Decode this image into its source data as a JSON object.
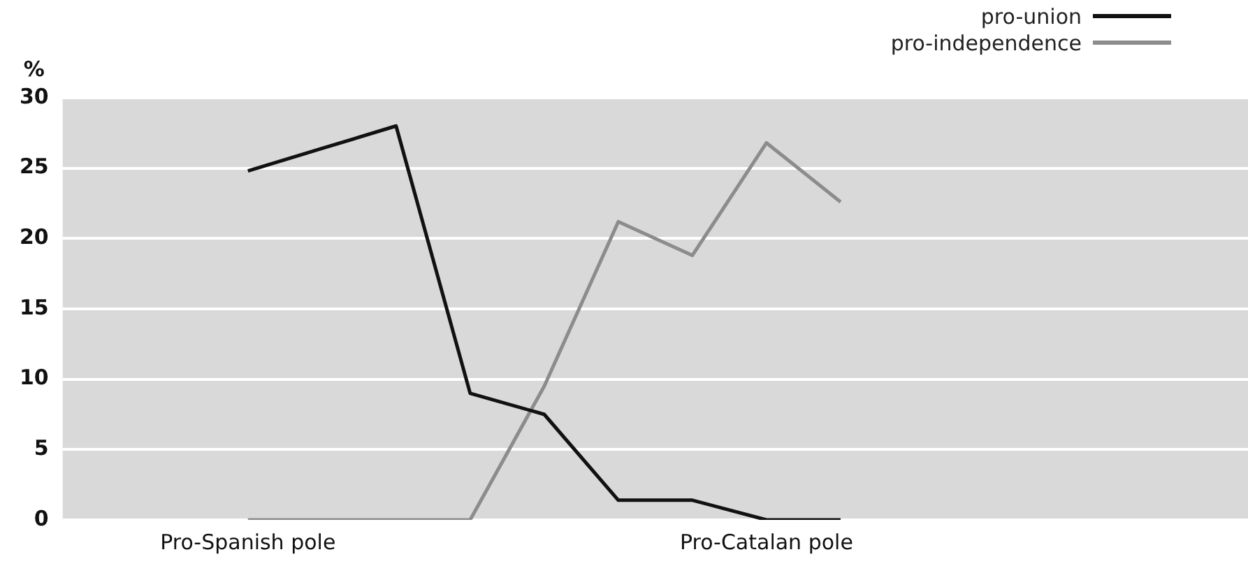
{
  "chart_data": {
    "type": "line",
    "ylabel": "%",
    "categories": [
      null,
      null,
      "Pro-Spanish pole",
      null,
      null,
      null,
      null,
      null,
      null,
      "Pro-Catalan pole",
      null,
      null,
      null,
      null,
      null,
      null
    ],
    "series": [
      {
        "name": "pro-union",
        "color": "#111111",
        "values": [
          null,
          null,
          24.8,
          26.4,
          28,
          9,
          7.5,
          1.4,
          1.4,
          0,
          0,
          null,
          null,
          null,
          null,
          null
        ]
      },
      {
        "name": "pro-independence",
        "color": "#8c8c8c",
        "values": [
          null,
          null,
          0,
          0,
          0,
          0,
          9.5,
          21.2,
          18.8,
          26.8,
          22.6,
          null,
          null,
          null,
          null,
          null
        ]
      }
    ],
    "ylim": [
      0,
      30
    ],
    "yticks": [
      0,
      5,
      10,
      15,
      20,
      25,
      30
    ],
    "grid": "y",
    "legend": "top right",
    "marker": "none",
    "line_style": "solid"
  }
}
